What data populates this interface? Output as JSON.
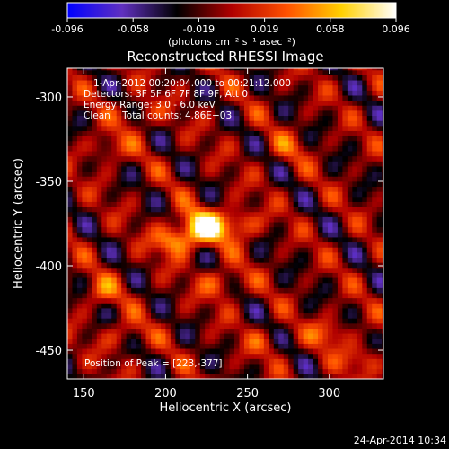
{
  "chart_data": {
    "type": "heatmap",
    "title": "Reconstructed RHESSI Image",
    "xlabel": "Heliocentric X (arcsec)",
    "ylabel": "Heliocentric Y (arcsec)",
    "xlim": [
      140,
      333
    ],
    "ylim": [
      -467,
      -283
    ],
    "x_ticks": [
      150,
      200,
      250,
      300
    ],
    "y_ticks": [
      -300,
      -350,
      -400,
      -450
    ],
    "colorbar": {
      "ticks": [
        "-0.096",
        "-0.058",
        "-0.019",
        "0.019",
        "0.058",
        "0.096"
      ],
      "label": "(photons cm⁻² s⁻¹ asec⁻²)",
      "range": [
        -0.096,
        0.096
      ],
      "colormap": [
        "#0000ff",
        "#6030c0",
        "#000000",
        "#b00000",
        "#ff5000",
        "#ffd000",
        "#ffffff"
      ]
    },
    "annotations": [
      "1-Apr-2012 00:20:04.000 to 00:21:12.000",
      "Detectors: 3F 5F 6F 7F 8F 9F, Att 0",
      "Energy Range: 3.0 - 6.0 keV",
      "Clean    Total counts: 4.86E+03"
    ],
    "peak_label": "Position of Peak = [223,-377]",
    "peak": {
      "x": 223,
      "y": -377,
      "value": 0.096
    },
    "sources": [
      {
        "x": 223,
        "y": -377,
        "value": 0.096
      },
      {
        "x": 205,
        "y": -385,
        "value": 0.06
      },
      {
        "x": 245,
        "y": -375,
        "value": 0.05
      },
      {
        "x": 235,
        "y": -410,
        "value": 0.045
      },
      {
        "x": 165,
        "y": -330,
        "value": 0.035
      },
      {
        "x": 185,
        "y": -310,
        "value": 0.03
      },
      {
        "x": 160,
        "y": -415,
        "value": 0.035
      },
      {
        "x": 300,
        "y": -440,
        "value": 0.04
      },
      {
        "x": 320,
        "y": -455,
        "value": 0.035
      },
      {
        "x": 275,
        "y": -330,
        "value": 0.025
      },
      {
        "x": 175,
        "y": -440,
        "value": 0.03
      },
      {
        "x": 260,
        "y": -445,
        "value": 0.02
      }
    ]
  },
  "footer_date": "24-Apr-2014 10:34"
}
